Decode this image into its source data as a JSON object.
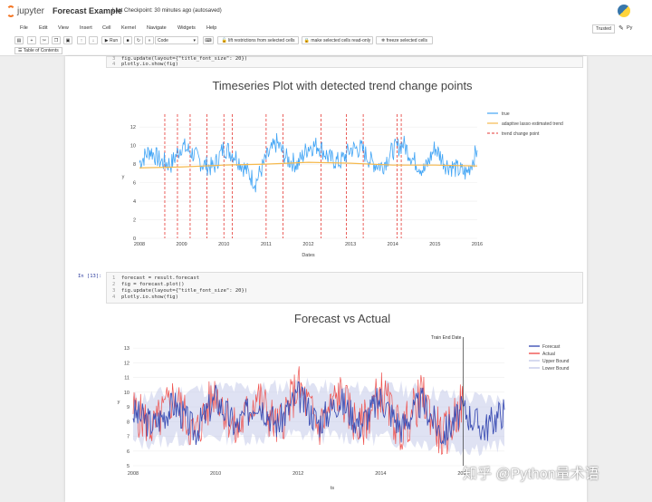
{
  "header": {
    "logo_text": "jupyter",
    "notebook_title": "Forecast Example",
    "checkpoint": "Last Checkpoint: 30 minutes ago  (autosaved)",
    "trusted": "Trusted",
    "kernel": "Py"
  },
  "menu": [
    "File",
    "Edit",
    "View",
    "Insert",
    "Cell",
    "Kernel",
    "Navigate",
    "Widgets",
    "Help"
  ],
  "toolbar": {
    "run_label": "Run",
    "cell_type": "Code",
    "lift_label": "lift restrictions from selected cells",
    "readonly_label": "make selected cells read-only",
    "freeze_label": "freeze selected cells",
    "toc_label": "Table of Contents"
  },
  "cell1": {
    "line_num_a": "3",
    "line_a": "fig.update(layout={\"title_font_size\": 20})",
    "line_num_b": "4",
    "line_b": "plotly.io.show(fig)"
  },
  "cell2": {
    "prompt": "In [13]:",
    "lines": [
      {
        "n": "1",
        "code": "forecast = result.forecast"
      },
      {
        "n": "2",
        "code": "fig = forecast.plot()"
      },
      {
        "n": "3",
        "code": "fig.update(layout={\"title_font_size\": 20})"
      },
      {
        "n": "4",
        "code": "plotly.io.show(fig)"
      }
    ]
  },
  "watermark": "知乎 @Python量术语",
  "colors": {
    "true": "#42a5f5",
    "trend": "#f5b94e",
    "cp": "#e53935",
    "forecast": "#3f51b5",
    "actual": "#ef5350",
    "band": "#c5cae9"
  },
  "chart_data": [
    {
      "type": "line",
      "title": "Timeseries Plot with detected trend change points",
      "xlabel": "Dates",
      "ylabel": "y",
      "x_ticks": [
        "2008",
        "2009",
        "2010",
        "2011",
        "2012",
        "2013",
        "2014",
        "2015",
        "2016"
      ],
      "y_ticks": [
        "0",
        "2",
        "4",
        "6",
        "8",
        "10",
        "12"
      ],
      "ylim": [
        0,
        13
      ],
      "xlim": [
        2008,
        2016
      ],
      "legend_position": "top-right",
      "series": [
        {
          "name": "true",
          "x": [
            2008.0,
            2008.25,
            2008.5,
            2008.75,
            2009.0,
            2009.25,
            2009.5,
            2009.75,
            2010.0,
            2010.25,
            2010.5,
            2010.75,
            2011.0,
            2011.25,
            2011.5,
            2011.75,
            2012.0,
            2012.25,
            2012.5,
            2012.75,
            2013.0,
            2013.25,
            2013.5,
            2013.75,
            2014.0,
            2014.25,
            2014.5,
            2014.75,
            2015.0,
            2015.25,
            2015.5,
            2015.75,
            2016.0
          ],
          "y": [
            8.2,
            9.5,
            8.3,
            8.0,
            10.0,
            9.2,
            8.0,
            7.6,
            9.8,
            9.0,
            7.5,
            6.0,
            8.6,
            10.3,
            8.5,
            8.0,
            9.9,
            10.0,
            8.6,
            8.2,
            9.6,
            9.7,
            8.2,
            7.8,
            9.5,
            10.2,
            8.4,
            7.3,
            9.8,
            8.0,
            7.5,
            7.0,
            9.5
          ]
        },
        {
          "name": "adaptive lasso estimated trend",
          "x": [
            2008.0,
            2009.0,
            2010.0,
            2011.0,
            2012.0,
            2013.0,
            2014.0,
            2015.0,
            2016.0
          ],
          "y": [
            7.6,
            7.7,
            7.9,
            8.0,
            8.2,
            8.1,
            7.9,
            7.9,
            7.8
          ]
        }
      ],
      "trend_change_points_label": "trend change point",
      "trend_change_points": [
        2008.6,
        2008.9,
        2009.2,
        2009.6,
        2010.0,
        2010.2,
        2011.0,
        2011.4,
        2012.3,
        2012.9,
        2013.3,
        2014.1,
        2014.2
      ]
    },
    {
      "type": "line",
      "title": "Forecast vs Actual",
      "xlabel": "ts",
      "ylabel": "y",
      "x_ticks": [
        "2008",
        "2010",
        "2012",
        "2014",
        "2016"
      ],
      "y_ticks": [
        "5",
        "6",
        "7",
        "8",
        "9",
        "10",
        "11",
        "12",
        "13"
      ],
      "ylim": [
        5,
        13.5
      ],
      "xlim": [
        2008,
        2017
      ],
      "annotation": "Train End Date",
      "train_end": 2016.0,
      "legend_position": "top-right",
      "series": [
        {
          "name": "Forecast",
          "x": [
            2008.0,
            2008.5,
            2009.0,
            2009.5,
            2010.0,
            2010.5,
            2011.0,
            2011.5,
            2012.0,
            2012.5,
            2013.0,
            2013.5,
            2014.0,
            2014.5,
            2015.0,
            2015.5,
            2016.0,
            2016.5,
            2017.0
          ],
          "y": [
            8.6,
            7.8,
            9.2,
            7.3,
            9.6,
            7.6,
            9.5,
            7.8,
            9.8,
            7.9,
            9.5,
            7.8,
            9.6,
            7.6,
            9.4,
            7.1,
            8.8,
            7.5,
            8.8
          ]
        },
        {
          "name": "Actual",
          "x": [
            2008.0,
            2008.5,
            2009.0,
            2009.5,
            2010.0,
            2010.5,
            2011.0,
            2011.5,
            2012.0,
            2012.5,
            2013.0,
            2013.5,
            2014.0,
            2014.5,
            2015.0,
            2015.5,
            2016.0
          ],
          "y": [
            8.8,
            7.5,
            9.8,
            7.0,
            10.2,
            7.2,
            9.8,
            7.5,
            10.4,
            7.6,
            9.9,
            7.4,
            10.1,
            7.2,
            9.8,
            6.8,
            9.3
          ]
        },
        {
          "name": "Upper Bound",
          "x": [
            2008.0,
            2009.0,
            2010.0,
            2011.0,
            2012.0,
            2013.0,
            2014.0,
            2015.0,
            2016.0,
            2017.0
          ],
          "y": [
            9.5,
            10.0,
            10.3,
            10.2,
            10.5,
            10.2,
            10.3,
            10.1,
            9.6,
            9.5
          ]
        },
        {
          "name": "Lower Bound",
          "x": [
            2008.0,
            2009.0,
            2010.0,
            2011.0,
            2012.0,
            2013.0,
            2014.0,
            2015.0,
            2016.0,
            2017.0
          ],
          "y": [
            6.5,
            6.8,
            7.0,
            6.9,
            7.1,
            7.0,
            6.9,
            6.6,
            6.2,
            6.3
          ]
        }
      ]
    }
  ]
}
